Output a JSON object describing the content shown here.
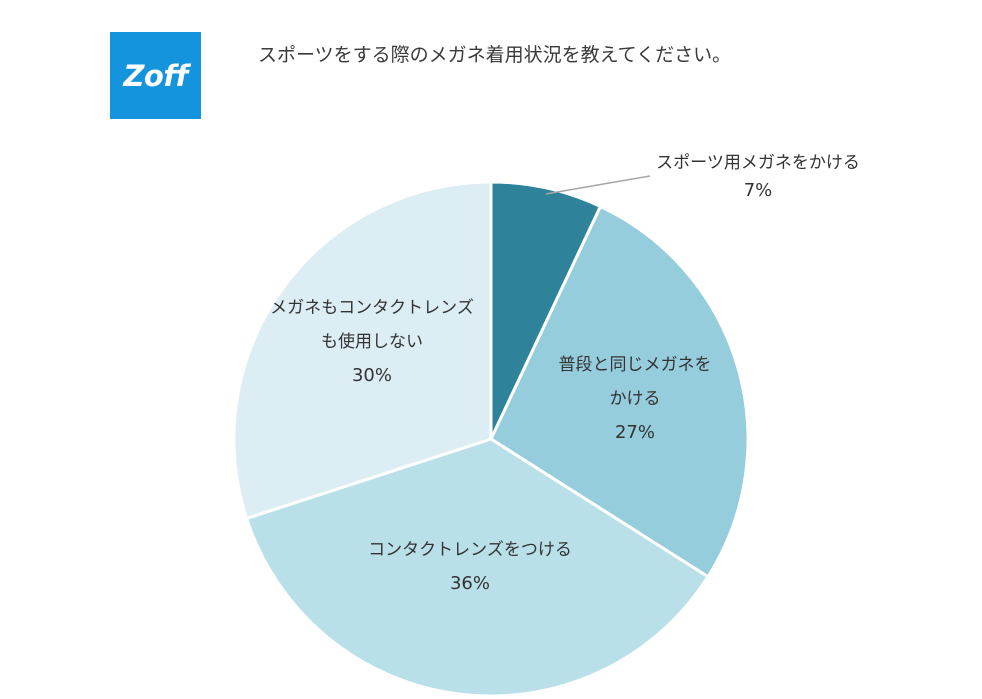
{
  "brand": {
    "logo_text": "Zoff",
    "color": "#1494dc"
  },
  "question": "スポーツをする際のメガネ着用状況を教えてください。",
  "chart_data": {
    "type": "pie",
    "title": "",
    "slices": [
      {
        "label_lines": [
          "スポーツ用メガネをかける"
        ],
        "value": 7,
        "value_label": "7%",
        "color": "#2e839b"
      },
      {
        "label_lines": [
          "普段と同じメガネを",
          "かける"
        ],
        "value": 27,
        "value_label": "27%",
        "color": "#96cddd"
      },
      {
        "label_lines": [
          "コンタクトレンズをつける"
        ],
        "value": 36,
        "value_label": "36%",
        "color": "#b9dfe8"
      },
      {
        "label_lines": [
          "メガネもコンタクトレンズ",
          "も使用しない"
        ],
        "value": 30,
        "value_label": "30%",
        "color": "#dcedf3"
      }
    ],
    "start": "12 o'clock",
    "direction": "clockwise",
    "legend": "none"
  }
}
